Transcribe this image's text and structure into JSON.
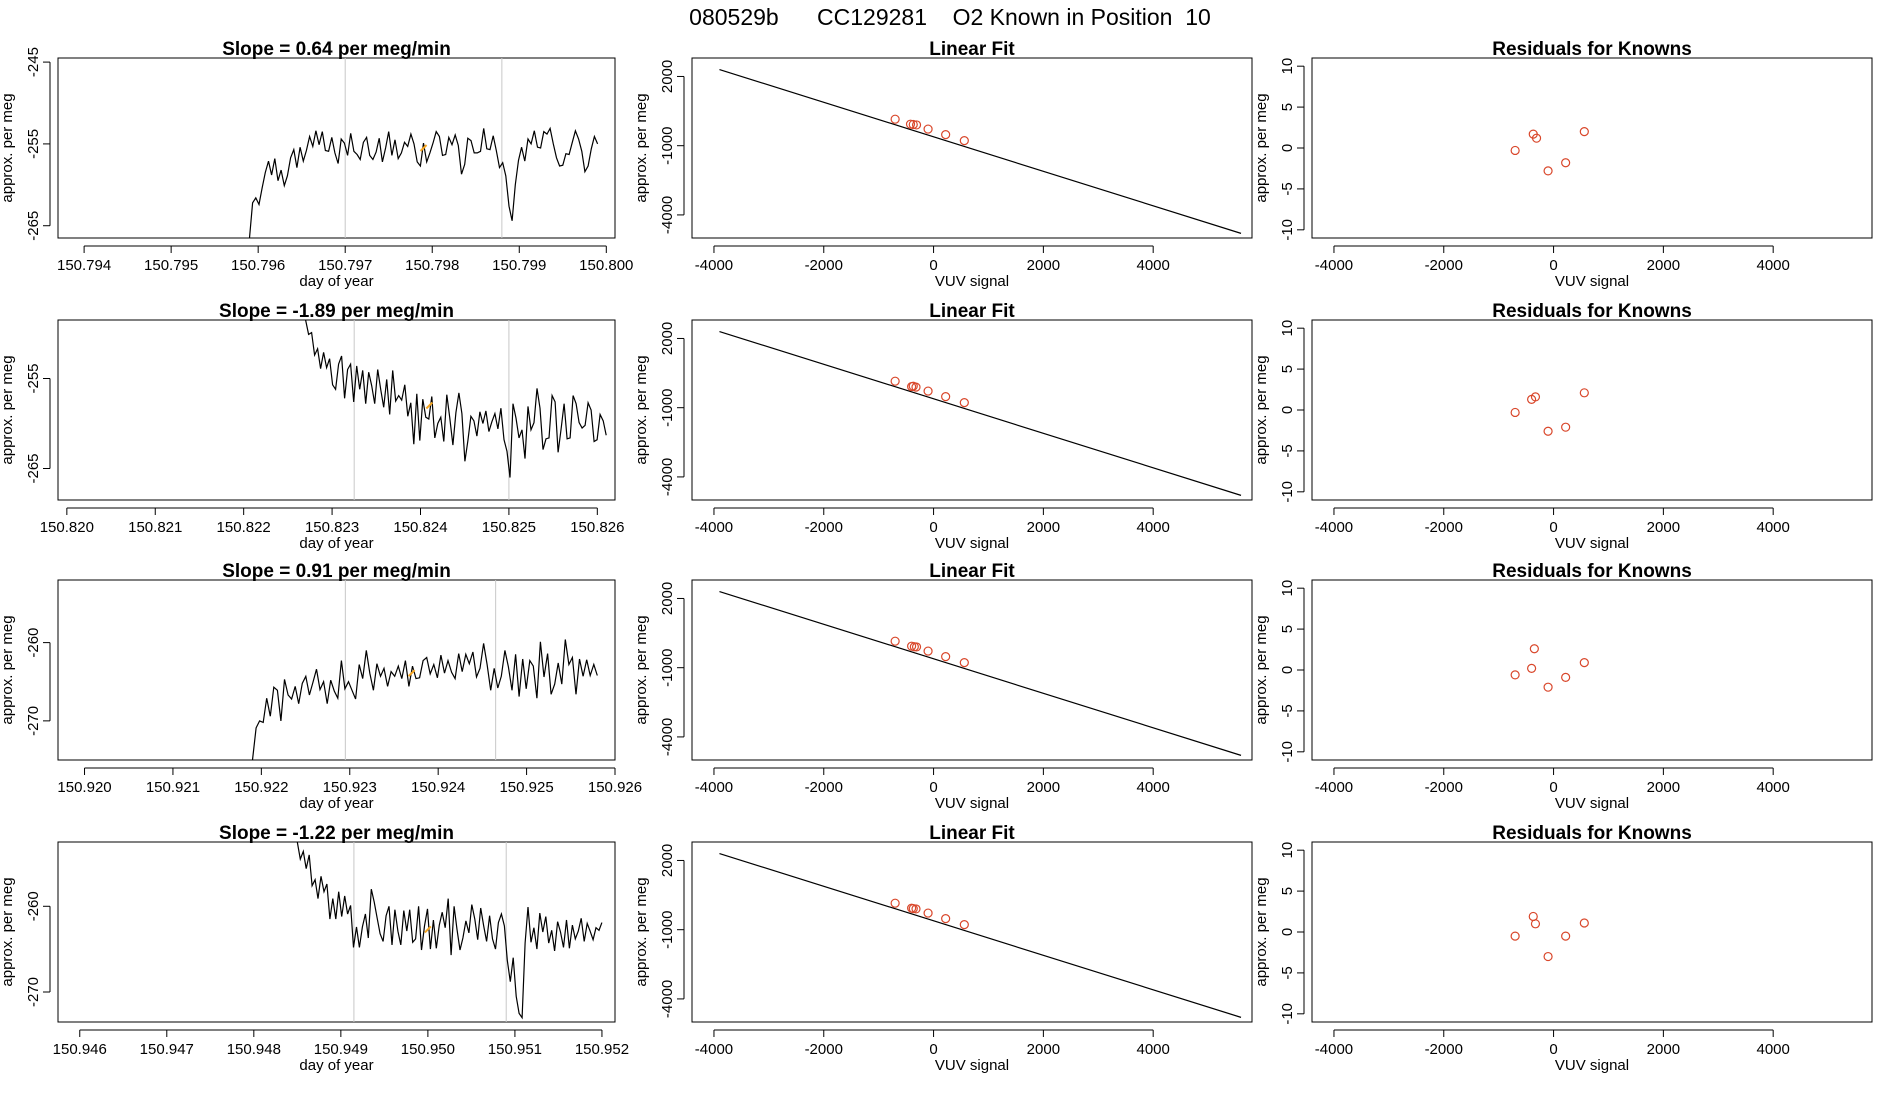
{
  "title": "080529b      CC129281    O2 Known in Position  10",
  "colors": {
    "line": "#000000",
    "vline": "#c8c8c8",
    "points": "#d9472b",
    "marker": "#f5a623",
    "axis": "#000000"
  },
  "chart_data": [
    {
      "type": "line",
      "title": "Slope =  0.64  per meg/min",
      "xlabel": "day of year",
      "ylabel": "approx. per meg",
      "xlim": [
        150.7937,
        150.8001
      ],
      "xticks": [
        150.794,
        150.795,
        150.796,
        150.797,
        150.798,
        150.799,
        150.8
      ],
      "xtick_labels": [
        "150.794",
        "150.795",
        "150.796",
        "150.797",
        "150.798",
        "150.799",
        "150.800"
      ],
      "ylim": [
        -266.5,
        -244.5
      ],
      "yticks": [
        -265,
        -255,
        -245
      ],
      "ytick_labels": [
        "-265",
        "-255",
        "-245"
      ],
      "vlines": [
        150.797,
        150.7988
      ],
      "marker": [
        150.7979,
        -255.5
      ],
      "x_start": 150.7959,
      "x_end": 150.7999,
      "y": [
        -266.5,
        -262.2,
        -261.6,
        -262.4,
        -260.4,
        -258.5,
        -257.1,
        -258.8,
        -256.8,
        -259.5,
        -258.2,
        -260.1,
        -258.9,
        -256.7,
        -255.7,
        -257.9,
        -255.4,
        -257.1,
        -255.8,
        -254.1,
        -255.3,
        -253.4,
        -255.1,
        -253.5,
        -255.8,
        -255.9,
        -254.2,
        -256.1,
        -257.4,
        -254.4,
        -254.9,
        -256.4,
        -253.7,
        -255.9,
        -256.3,
        -256.9,
        -254.8,
        -254.2,
        -256.4,
        -256.9,
        -256.0,
        -254.3,
        -257.2,
        -255.5,
        -253.5,
        -256.4,
        -254.5,
        -256.8,
        -256.1,
        -254.8,
        -255.3,
        -253.8,
        -255.0,
        -257.2,
        -257.7,
        -254.9,
        -257.2,
        -256.1,
        -254.9,
        -253.5,
        -254.1,
        -256.4,
        -256.3,
        -254.2,
        -255.1,
        -253.9,
        -255.2,
        -258.7,
        -257.5,
        -254.3,
        -254.6,
        -256.1,
        -256.1,
        -255.9,
        -253.1,
        -255.6,
        -255.7,
        -254.0,
        -255.8,
        -257.9,
        -257.3,
        -258.9,
        -262.6,
        -264.4,
        -260.0,
        -257.0,
        -255.4,
        -257.1,
        -254.4,
        -255.0,
        -253.4,
        -255.4,
        -255.5,
        -253.5,
        -253.8,
        -253.1,
        -255.0,
        -256.7,
        -257.7,
        -257.6,
        -256.2,
        -256.3,
        -254.8,
        -253.4,
        -254.4,
        -255.9,
        -258.4,
        -257.7,
        -255.6,
        -254.1,
        -255.0
      ]
    },
    {
      "type": "scatter",
      "title": "Linear Fit",
      "xlabel": "VUV signal",
      "ylabel": "approx. per meg",
      "xlim": [
        -4400,
        5800
      ],
      "xticks": [
        -4000,
        -2000,
        0,
        2000,
        4000
      ],
      "xtick_labels": [
        "-4000",
        "-2000",
        "0",
        "2000",
        "4000"
      ],
      "ylim": [
        -5000,
        2800
      ],
      "yticks": [
        -4000,
        -1000,
        2000
      ],
      "ytick_labels": [
        "-4000",
        "-1000",
        "2000"
      ],
      "fit_line": {
        "x": [
          -3900,
          5600
        ],
        "y": [
          2300,
          -4800
        ]
      },
      "points": {
        "x": [
          -700,
          -420,
          -370,
          -310,
          -100,
          220,
          560
        ],
        "y": [
          148,
          -68,
          -80,
          -100,
          -280,
          -520,
          -780
        ]
      }
    },
    {
      "type": "scatter",
      "title": "Residuals for Knowns",
      "xlabel": "VUV signal",
      "ylabel": "approx. per meg",
      "xlim": [
        -4400,
        5800
      ],
      "xticks": [
        -4000,
        -2000,
        0,
        2000,
        4000
      ],
      "xtick_labels": [
        "-4000",
        "-2000",
        "0",
        "2000",
        "4000"
      ],
      "ylim": [
        -11,
        11
      ],
      "yticks": [
        -10,
        -5,
        0,
        5,
        10
      ],
      "ytick_labels": [
        "-10",
        "-5",
        "0",
        "5",
        "10"
      ],
      "points": {
        "x": [
          -700,
          -370,
          -310,
          -100,
          220,
          560
        ],
        "y": [
          -0.3,
          1.7,
          1.2,
          -2.8,
          -1.8,
          2.0
        ]
      }
    },
    {
      "type": "line",
      "title": "Slope =  -1.89  per meg/min",
      "xlabel": "day of year",
      "ylabel": "approx. per meg",
      "xlim": [
        150.8199,
        150.8262
      ],
      "xticks": [
        150.82,
        150.821,
        150.822,
        150.823,
        150.824,
        150.825,
        150.826
      ],
      "xtick_labels": [
        "150.820",
        "150.821",
        "150.822",
        "150.823",
        "150.824",
        "150.825",
        "150.826"
      ],
      "ylim": [
        -268.5,
        -248.5
      ],
      "yticks": [
        -265,
        -255
      ],
      "ytick_labels": [
        "-265",
        "-255"
      ],
      "vlines": [
        150.82325,
        150.825
      ],
      "marker": [
        150.8241,
        -258.0
      ],
      "x_start": 150.8227,
      "x_end": 150.8261,
      "y": [
        -248.5,
        -250.1,
        -249.9,
        -252.4,
        -251.7,
        -253.9,
        -252.1,
        -253.8,
        -252.8,
        -255.7,
        -256.2,
        -253.4,
        -252.5,
        -257.2,
        -254.0,
        -253.4,
        -257.6,
        -253.6,
        -256.2,
        -254.1,
        -257.8,
        -254.3,
        -255.8,
        -257.8,
        -254.0,
        -256.2,
        -258.2,
        -255.1,
        -259.0,
        -254.1,
        -257.5,
        -256.9,
        -257.4,
        -255.7,
        -259.2,
        -257.7,
        -262.3,
        -256.7,
        -261.9,
        -257.3,
        -259.3,
        -259.5,
        -257.0,
        -261.6,
        -260.0,
        -259.3,
        -262.0,
        -256.8,
        -259.4,
        -262.4,
        -258.8,
        -256.6,
        -258.9,
        -264.2,
        -261.9,
        -259.2,
        -259.7,
        -261.4,
        -258.7,
        -260.0,
        -258.6,
        -260.9,
        -259.8,
        -258.9,
        -260.6,
        -258.3,
        -261.8,
        -263.1,
        -266.0,
        -257.8,
        -259.4,
        -261.6,
        -260.7,
        -263.9,
        -258.1,
        -260.7,
        -259.9,
        -256.1,
        -258.3,
        -262.9,
        -261.7,
        -261.6,
        -256.9,
        -257.6,
        -263.2,
        -260.6,
        -257.8,
        -261.7,
        -261.6,
        -256.9,
        -257.8,
        -259.9,
        -260.5,
        -260.2,
        -257.7,
        -258.5,
        -262.0,
        -261.8,
        -259.0,
        -259.7,
        -261.3
      ]
    },
    {
      "type": "scatter",
      "title": "Linear Fit",
      "xlabel": "VUV signal",
      "ylabel": "approx. per meg",
      "xlim": [
        -4400,
        5800
      ],
      "xticks": [
        -4000,
        -2000,
        0,
        2000,
        4000
      ],
      "xtick_labels": [
        "-4000",
        "-2000",
        "0",
        "2000",
        "4000"
      ],
      "ylim": [
        -5000,
        2800
      ],
      "yticks": [
        -4000,
        -1000,
        2000
      ],
      "ytick_labels": [
        "-4000",
        "-1000",
        "2000"
      ],
      "fit_line": {
        "x": [
          -3900,
          5600
        ],
        "y": [
          2300,
          -4800
        ]
      },
      "points": {
        "x": [
          -700,
          -400,
          -370,
          -320,
          -100,
          220,
          560
        ],
        "y": [
          148,
          -85,
          -68,
          -110,
          -280,
          -520,
          -780
        ]
      }
    },
    {
      "type": "scatter",
      "title": "Residuals for Knowns",
      "xlabel": "VUV signal",
      "ylabel": "approx. per meg",
      "xlim": [
        -4400,
        5800
      ],
      "xticks": [
        -4000,
        -2000,
        0,
        2000,
        4000
      ],
      "xtick_labels": [
        "-4000",
        "-2000",
        "0",
        "2000",
        "4000"
      ],
      "ylim": [
        -11,
        11
      ],
      "yticks": [
        -10,
        -5,
        0,
        5,
        10
      ],
      "ytick_labels": [
        "-10",
        "-5",
        "0",
        "5",
        "10"
      ],
      "points": {
        "x": [
          -700,
          -400,
          -330,
          -100,
          220,
          560
        ],
        "y": [
          -0.3,
          1.3,
          1.6,
          -2.6,
          -2.1,
          2.1
        ]
      }
    },
    {
      "type": "line",
      "title": "Slope =  0.91  per meg/min",
      "xlabel": "day of year",
      "ylabel": "approx. per meg",
      "xlim": [
        150.9197,
        150.926
      ],
      "xticks": [
        150.92,
        150.921,
        150.922,
        150.923,
        150.924,
        150.925,
        150.926
      ],
      "xtick_labels": [
        "150.920",
        "150.921",
        "150.922",
        "150.923",
        "150.924",
        "150.925",
        "150.926"
      ],
      "ylim": [
        -275.0,
        -252.0
      ],
      "yticks": [
        -270,
        -260
      ],
      "ytick_labels": [
        "-270",
        "-260"
      ],
      "vlines": [
        150.92295,
        150.92465
      ],
      "marker": [
        150.9237,
        -263.9
      ],
      "x_start": 150.9219,
      "x_end": 150.9258,
      "y": [
        -275.0,
        -270.9,
        -270.0,
        -270.2,
        -267.1,
        -269.4,
        -265.7,
        -266.1,
        -270.0,
        -264.7,
        -266.7,
        -267.2,
        -265.6,
        -267.8,
        -265.2,
        -264.3,
        -266.7,
        -265.1,
        -263.4,
        -266.0,
        -265.0,
        -267.8,
        -264.8,
        -266.2,
        -267.1,
        -262.3,
        -265.9,
        -265.0,
        -266.1,
        -267.2,
        -262.8,
        -264.6,
        -261.0,
        -263.9,
        -266.1,
        -262.7,
        -264.3,
        -263.3,
        -265.6,
        -263.7,
        -264.3,
        -263.0,
        -264.6,
        -262.3,
        -265.6,
        -263.0,
        -264.6,
        -264.5,
        -262.3,
        -261.9,
        -264.0,
        -262.8,
        -264.5,
        -261.6,
        -263.9,
        -262.3,
        -263.8,
        -264.6,
        -261.4,
        -263.7,
        -261.5,
        -262.7,
        -261.2,
        -264.4,
        -263.3,
        -260.1,
        -262.8,
        -266.1,
        -263.3,
        -265.8,
        -264.3,
        -261.0,
        -263.1,
        -266.1,
        -261.5,
        -266.9,
        -262.1,
        -265.9,
        -262.3,
        -263.0,
        -267.1,
        -259.9,
        -264.4,
        -261.4,
        -266.6,
        -265.3,
        -262.6,
        -265.3,
        -259.6,
        -262.8,
        -261.9,
        -266.6,
        -262.1,
        -264.3,
        -262.2,
        -264.2,
        -262.8,
        -264.2
      ]
    },
    {
      "type": "scatter",
      "title": "Linear Fit",
      "xlabel": "VUV signal",
      "ylabel": "approx. per meg",
      "xlim": [
        -4400,
        5800
      ],
      "xticks": [
        -4000,
        -2000,
        0,
        2000,
        4000
      ],
      "xtick_labels": [
        "-4000",
        "-2000",
        "0",
        "2000",
        "4000"
      ],
      "ylim": [
        -5000,
        2800
      ],
      "yticks": [
        -4000,
        -1000,
        2000
      ],
      "ytick_labels": [
        "-4000",
        "-1000",
        "2000"
      ],
      "fit_line": {
        "x": [
          -3900,
          5600
        ],
        "y": [
          2300,
          -4800
        ]
      },
      "points": {
        "x": [
          -700,
          -400,
          -350,
          -310,
          -100,
          220,
          560
        ],
        "y": [
          148,
          -68,
          -92,
          -100,
          -280,
          -520,
          -780
        ]
      }
    },
    {
      "type": "scatter",
      "title": "Residuals for Knowns",
      "xlabel": "VUV signal",
      "ylabel": "approx. per meg",
      "xlim": [
        -4400,
        5800
      ],
      "xticks": [
        -4000,
        -2000,
        0,
        2000,
        4000
      ],
      "xtick_labels": [
        "-4000",
        "-2000",
        "0",
        "2000",
        "4000"
      ],
      "ylim": [
        -11,
        11
      ],
      "yticks": [
        -10,
        -5,
        0,
        5,
        10
      ],
      "ytick_labels": [
        "-10",
        "-5",
        "0",
        "5",
        "10"
      ],
      "points": {
        "x": [
          -700,
          -400,
          -350,
          -100,
          220,
          560
        ],
        "y": [
          -0.6,
          0.2,
          2.6,
          -2.1,
          -0.9,
          0.9
        ]
      }
    },
    {
      "type": "line",
      "title": "Slope =  -1.22  per meg/min",
      "xlabel": "day of year",
      "ylabel": "approx. per meg",
      "xlim": [
        150.94575,
        150.95215
      ],
      "xticks": [
        150.946,
        150.947,
        150.948,
        150.949,
        150.95,
        150.951,
        150.952
      ],
      "xtick_labels": [
        "150.946",
        "150.947",
        "150.948",
        "150.949",
        "150.950",
        "150.951",
        "150.952"
      ],
      "ylim": [
        -273.5,
        -252.5
      ],
      "yticks": [
        -270,
        -260
      ],
      "ytick_labels": [
        "-270",
        "-260"
      ],
      "vlines": [
        150.94915,
        150.9509
      ],
      "marker": [
        150.95,
        -262.7
      ],
      "x_start": 150.9485,
      "x_end": 150.952,
      "y": [
        -252.5,
        -254.5,
        -253.6,
        -255.6,
        -254.0,
        -257.6,
        -256.9,
        -259.1,
        -256.5,
        -258.3,
        -257.4,
        -261.5,
        -259.1,
        -261.5,
        -258.3,
        -261.2,
        -258.8,
        -260.9,
        -259.9,
        -264.8,
        -262.4,
        -264.8,
        -262.4,
        -260.9,
        -263.7,
        -258.0,
        -259.5,
        -261.4,
        -263.2,
        -264.1,
        -261.1,
        -260.0,
        -264.5,
        -260.4,
        -262.9,
        -264.5,
        -260.5,
        -262.9,
        -260.4,
        -264.2,
        -263.8,
        -260.0,
        -265.1,
        -262.3,
        -260.3,
        -265.0,
        -261.6,
        -264.9,
        -262.2,
        -260.7,
        -262.5,
        -259.1,
        -265.7,
        -260.0,
        -262.7,
        -265.1,
        -263.7,
        -261.7,
        -263.1,
        -259.8,
        -261.5,
        -263.9,
        -260.2,
        -262.3,
        -264.1,
        -261.1,
        -263.8,
        -265.0,
        -261.9,
        -260.9,
        -262.3,
        -266.3,
        -268.8,
        -266.0,
        -270.5,
        -272.5,
        -273.0,
        -264.3,
        -260.1,
        -264.2,
        -262.5,
        -265.0,
        -260.8,
        -263.0,
        -261.2,
        -264.3,
        -262.8,
        -265.2,
        -261.8,
        -263.0,
        -264.8,
        -261.6,
        -264.9,
        -262.2,
        -263.8,
        -262.9,
        -261.4,
        -264.1,
        -262.0,
        -262.9,
        -263.9,
        -262.5,
        -262.8,
        -261.9
      ]
    },
    {
      "type": "scatter",
      "title": "Linear Fit",
      "xlabel": "VUV signal",
      "ylabel": "approx. per meg",
      "xlim": [
        -4400,
        5800
      ],
      "xticks": [
        -4000,
        -2000,
        0,
        2000,
        4000
      ],
      "xtick_labels": [
        "-4000",
        "-2000",
        "0",
        "2000",
        "4000"
      ],
      "ylim": [
        -5000,
        2800
      ],
      "yticks": [
        -4000,
        -1000,
        2000
      ],
      "ytick_labels": [
        "-4000",
        "-1000",
        "2000"
      ],
      "fit_line": {
        "x": [
          -3900,
          5600
        ],
        "y": [
          2300,
          -4800
        ]
      },
      "points": {
        "x": [
          -700,
          -400,
          -370,
          -320,
          -100,
          220,
          560
        ],
        "y": [
          148,
          -68,
          -85,
          -100,
          -280,
          -520,
          -780
        ]
      }
    },
    {
      "type": "scatter",
      "title": "Residuals for Knowns",
      "xlabel": "VUV signal",
      "ylabel": "approx. per meg",
      "xlim": [
        -4400,
        5800
      ],
      "xticks": [
        -4000,
        -2000,
        0,
        2000,
        4000
      ],
      "xtick_labels": [
        "-4000",
        "-2000",
        "0",
        "2000",
        "4000"
      ],
      "ylim": [
        -11,
        11
      ],
      "yticks": [
        -10,
        -5,
        0,
        5,
        10
      ],
      "ytick_labels": [
        "-10",
        "-5",
        "0",
        "5",
        "10"
      ],
      "points": {
        "x": [
          -700,
          -370,
          -330,
          -100,
          220,
          560
        ],
        "y": [
          -0.5,
          1.9,
          1.0,
          -3.0,
          -0.5,
          1.1
        ]
      }
    }
  ]
}
